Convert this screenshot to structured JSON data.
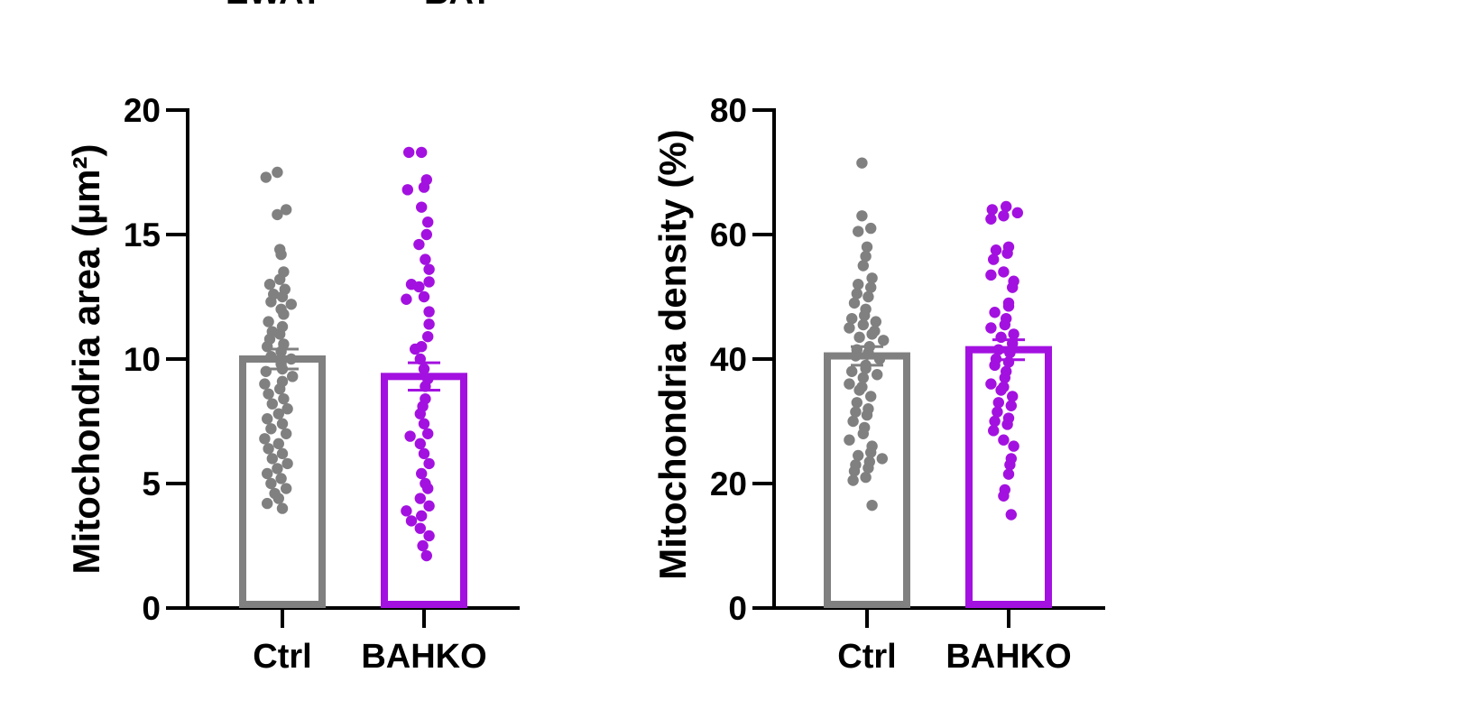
{
  "top_labels": [
    "EWAT",
    "BAT"
  ],
  "chart_data": [
    {
      "type": "bar",
      "ylabel": "Mitochondria area (µm²)",
      "ylim": [
        0,
        20
      ],
      "yticks": [
        0,
        5,
        10,
        15,
        20
      ],
      "categories": [
        "Ctrl",
        "BAHKO"
      ],
      "error_type": "SEM",
      "series": [
        {
          "category": "Ctrl",
          "color": "#808080",
          "mean": 10.0,
          "sem": 0.4,
          "points": [
            17.5,
            17.3,
            16.0,
            15.8,
            14.4,
            14.2,
            13.5,
            13.2,
            13.0,
            12.8,
            12.6,
            12.5,
            12.3,
            12.2,
            12.0,
            11.8,
            11.5,
            11.3,
            11.1,
            11.0,
            10.8,
            10.6,
            10.5,
            10.3,
            10.1,
            10.0,
            9.8,
            9.6,
            9.5,
            9.3,
            9.1,
            9.0,
            8.8,
            8.6,
            8.4,
            8.2,
            8.0,
            7.8,
            7.6,
            7.4,
            7.2,
            7.0,
            6.8,
            6.6,
            6.4,
            6.2,
            6.0,
            5.8,
            5.6,
            5.4,
            5.2,
            5.0,
            4.8,
            4.6,
            4.4,
            4.2,
            4.0
          ]
        },
        {
          "category": "BAHKO",
          "color": "#a311e0",
          "mean": 9.3,
          "sem": 0.55,
          "points": [
            18.3,
            18.3,
            17.2,
            16.9,
            16.8,
            16.1,
            15.5,
            15.0,
            14.6,
            14.0,
            13.6,
            13.1,
            13.0,
            12.9,
            12.5,
            12.4,
            11.9,
            11.4,
            10.9,
            10.5,
            10.4,
            10.0,
            9.6,
            9.2,
            8.9,
            8.4,
            8.1,
            7.8,
            7.4,
            7.0,
            6.9,
            6.6,
            6.2,
            5.8,
            5.4,
            5.0,
            4.8,
            4.4,
            4.1,
            3.9,
            3.7,
            3.5,
            3.2,
            2.9,
            2.5,
            2.1
          ]
        }
      ]
    },
    {
      "type": "bar",
      "ylabel": "Mitochondria density (%)",
      "ylim": [
        0,
        80
      ],
      "yticks": [
        0,
        20,
        40,
        60,
        80
      ],
      "categories": [
        "Ctrl",
        "BAHKO"
      ],
      "error_type": "SEM",
      "series": [
        {
          "category": "Ctrl",
          "color": "#808080",
          "mean": 40.5,
          "sem": 1.5,
          "points": [
            71.5,
            63.0,
            61.0,
            60.5,
            58.0,
            56.5,
            55.0,
            53.0,
            52.0,
            51.5,
            50.5,
            50.0,
            49.0,
            48.0,
            47.0,
            46.5,
            46.0,
            45.5,
            45.0,
            44.5,
            44.0,
            43.5,
            43.0,
            42.0,
            41.5,
            41.0,
            40.5,
            40.0,
            39.0,
            38.5,
            38.0,
            37.5,
            37.0,
            36.0,
            35.5,
            35.0,
            34.0,
            33.0,
            32.0,
            31.5,
            31.0,
            30.0,
            29.0,
            28.0,
            27.0,
            26.0,
            25.0,
            24.5,
            24.0,
            23.5,
            23.0,
            22.5,
            22.0,
            21.0,
            20.5,
            16.5
          ]
        },
        {
          "category": "BAHKO",
          "color": "#a311e0",
          "mean": 41.5,
          "sem": 1.6,
          "points": [
            64.5,
            64.0,
            63.5,
            63.0,
            62.5,
            58.0,
            57.5,
            57.0,
            56.0,
            54.0,
            53.5,
            52.5,
            51.5,
            49.0,
            48.5,
            47.5,
            46.5,
            45.5,
            45.0,
            44.0,
            43.5,
            42.5,
            41.5,
            41.0,
            40.0,
            39.5,
            39.0,
            38.0,
            37.0,
            36.0,
            35.5,
            35.0,
            34.0,
            33.0,
            32.5,
            31.5,
            30.5,
            30.0,
            29.5,
            28.5,
            27.0,
            26.0,
            24.0,
            23.0,
            21.5,
            19.0,
            18.0,
            15.0
          ]
        }
      ]
    }
  ]
}
